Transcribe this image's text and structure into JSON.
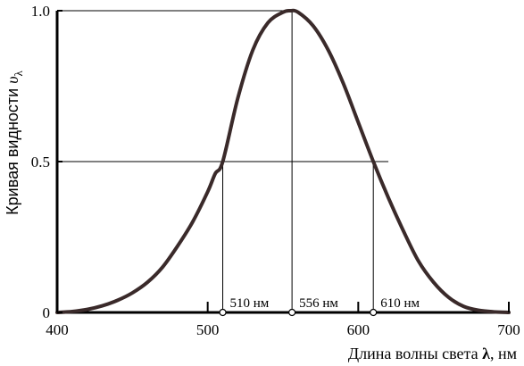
{
  "chart_data": {
    "type": "line",
    "title": "",
    "xlabel": "Длина волны света",
    "xlabel_symbol": "λ",
    "xlabel_unit": ", нм",
    "ylabel": "Кривая видности",
    "ylabel_symbol": "υ",
    "ylabel_subscript": "λ",
    "xlim": [
      400,
      700
    ],
    "ylim": [
      0,
      1
    ],
    "x_ticks": [
      400,
      500,
      600,
      700
    ],
    "x_tick_labels": [
      "400",
      "500",
      "600",
      "700"
    ],
    "y_ticks": [
      0,
      0.5,
      1.0
    ],
    "y_tick_labels": [
      "0",
      "0.5",
      "1.0"
    ],
    "grid": false,
    "series": [
      {
        "x": [
          400,
          410,
          420,
          430,
          440,
          450,
          460,
          470,
          480,
          490,
          500,
          505,
          510,
          520,
          530,
          540,
          550,
          555,
          560,
          570,
          580,
          590,
          600,
          610,
          620,
          630,
          640,
          650,
          660,
          670,
          680,
          690,
          700
        ],
        "values": [
          0.0,
          0.003,
          0.01,
          0.022,
          0.04,
          0.065,
          0.1,
          0.15,
          0.22,
          0.3,
          0.4,
          0.46,
          0.5,
          0.71,
          0.87,
          0.96,
          0.995,
          1.0,
          0.995,
          0.95,
          0.87,
          0.76,
          0.63,
          0.5,
          0.38,
          0.27,
          0.17,
          0.1,
          0.05,
          0.02,
          0.007,
          0.002,
          0.0
        ],
        "color": "#3a2a2a"
      }
    ],
    "markers": [
      {
        "x": 510,
        "y": 0.5,
        "label": "510 нм"
      },
      {
        "x": 556,
        "y": 1.0,
        "label": "556 нм"
      },
      {
        "x": 610,
        "y": 0.5,
        "label": "610 нм"
      }
    ],
    "annotations": {
      "half_line_y": 0.5,
      "peak_line_y": 1.0
    }
  }
}
